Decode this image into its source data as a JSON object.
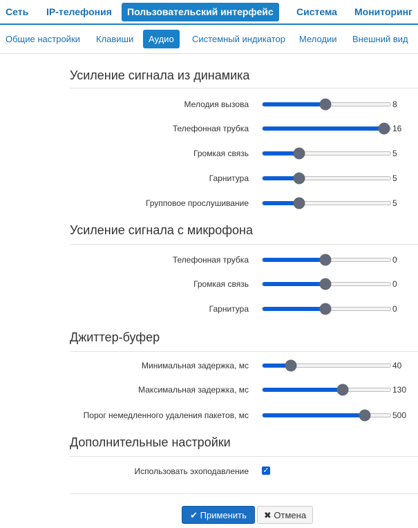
{
  "nav": {
    "tabs": [
      "Сеть",
      "IP-телефония",
      "Пользовательский интерфейс",
      "Система",
      "Мониторинг"
    ],
    "active": 2
  },
  "subnav": {
    "tabs": [
      "Общие настройки",
      "Клавиши",
      "Аудио",
      "Системный индикатор",
      "Мелодии",
      "Внешний вид"
    ],
    "active": 2
  },
  "sections": [
    {
      "title": "Усиление сигнала из динамика",
      "rows": [
        {
          "label": "Мелодия вызова",
          "value": 8
        },
        {
          "label": "Телефонная трубка",
          "value": 16
        },
        {
          "label": "Громкая связь",
          "value": 5
        },
        {
          "label": "Гарнитура",
          "value": 5
        },
        {
          "label": "Групповое прослушивание",
          "value": 5
        }
      ]
    },
    {
      "title": "Усиление сигнала с микрофона",
      "rows": [
        {
          "label": "Телефонная трубка",
          "value": 0
        },
        {
          "label": "Громкая связь",
          "value": 0
        },
        {
          "label": "Гарнитура",
          "value": 0
        }
      ]
    },
    {
      "title": "Джиттер-буфер",
      "rows": [
        {
          "label": "Минимальная задержка, мс",
          "value": 40
        },
        {
          "label": "Максимальная задержка, мс",
          "value": 130
        },
        {
          "label": "Порог немедленного удаления пакетов, мс",
          "value": 500
        }
      ]
    }
  ],
  "extra": {
    "title": "Дополнительные настройки",
    "checkbox": {
      "label": "Использовать эхоподавление",
      "checked": true
    }
  },
  "buttons": {
    "apply": "Применить",
    "cancel": "Отмена"
  }
}
